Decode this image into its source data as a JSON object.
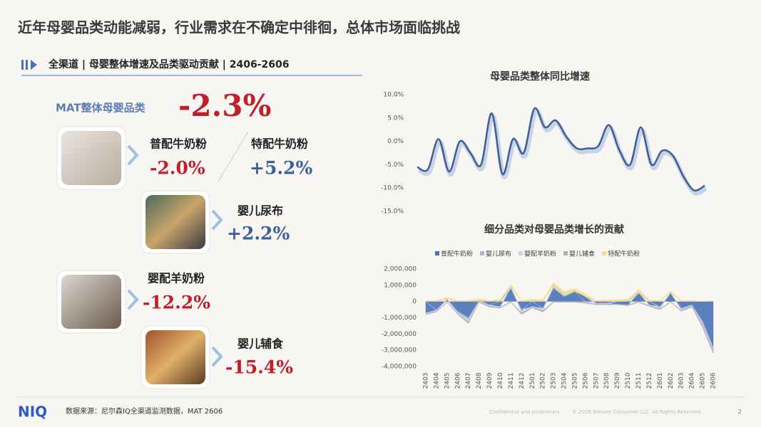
{
  "title": "近年母婴品类动能减弱，行业需求在不确定中徘徊，总体市场面临挑战",
  "section": "全渠道 | 母婴整体增速及品类驱动贡献 | 2406-2606",
  "mat": {
    "label": "MAT整体母婴品类",
    "value": "-2.3%"
  },
  "items": [
    {
      "name": "普配牛奶粉",
      "value": "-2.0%"
    },
    {
      "name": "特配牛奶粉",
      "value": "+5.2%"
    },
    {
      "name": "婴儿尿布",
      "value": "+2.2%"
    },
    {
      "name": "婴配羊奶粉",
      "value": "-12.2%"
    },
    {
      "name": "婴儿辅食",
      "value": "-15.4%"
    }
  ],
  "chart_data": [
    {
      "type": "line",
      "title": "母婴品类整体同比增速",
      "color": "#3d5f99",
      "values": [
        -5.5,
        -6,
        0.5,
        -6.5,
        0,
        -2.5,
        -5,
        6,
        -7,
        0.5,
        -2.5,
        7,
        3,
        4.5,
        1,
        -1.5,
        -1.5,
        -1,
        3.5,
        -2,
        -5,
        3,
        -5,
        -2,
        -3,
        -7.5,
        -10.5,
        -9.5
      ],
      "ylim": [
        -15,
        10
      ],
      "yticks": [
        {
          "value": 10,
          "label": "10.0%"
        },
        {
          "value": 5,
          "label": "5.0%"
        },
        {
          "value": 0,
          "label": "0.0%"
        },
        {
          "value": -5,
          "label": "-5.0%"
        },
        {
          "value": -10,
          "label": "-10.0%"
        },
        {
          "value": -15,
          "label": "-15.0%"
        }
      ]
    },
    {
      "type": "area",
      "stacked": true,
      "title": "细分品类对母婴品类增长的贡献",
      "legend": "top",
      "categories": [
        "2403",
        "2404",
        "2405",
        "2406",
        "2407",
        "2408",
        "2409",
        "2410",
        "2411",
        "2412",
        "2501",
        "2502",
        "2503",
        "2504",
        "2505",
        "2506",
        "2507",
        "2508",
        "2509",
        "2510",
        "2511",
        "2512",
        "2601",
        "2602",
        "2603",
        "2604",
        "2605",
        "2606"
      ],
      "series": [
        {
          "name": "普配牛奶粉",
          "color": "#4a72b8",
          "values": [
            -700000,
            -500000,
            100000,
            -600000,
            -1000000,
            50000,
            -200000,
            -300000,
            800000,
            -500000,
            -300000,
            -400000,
            800000,
            300000,
            600000,
            300000,
            -100000,
            -100000,
            -150000,
            -200000,
            500000,
            -200000,
            -300000,
            500000,
            -400000,
            -200000,
            -1200000,
            -2800000
          ]
        },
        {
          "name": "婴儿尿布",
          "color": "#a9b4d6",
          "values": [
            0,
            -50000,
            50000,
            -100000,
            -100000,
            0,
            -50000,
            50000,
            50000,
            -100000,
            50000,
            -50000,
            100000,
            50000,
            50000,
            -50000,
            0,
            0,
            0,
            50000,
            50000,
            0,
            -100000,
            50000,
            -100000,
            -50000,
            -200000,
            -150000
          ]
        },
        {
          "name": "婴配羊奶粉",
          "color": "#c8d4ea",
          "values": [
            -50000,
            -50000,
            0,
            -50000,
            -150000,
            0,
            -50000,
            -50000,
            50000,
            -100000,
            -50000,
            -100000,
            50000,
            50000,
            0,
            0,
            -50000,
            -50000,
            0,
            0,
            0,
            -50000,
            -50000,
            0,
            -50000,
            -50000,
            -100000,
            -100000
          ]
        },
        {
          "name": "婴儿辅食",
          "color": "#b0b0b0",
          "values": [
            -50000,
            -50000,
            -50000,
            -50000,
            -100000,
            -50000,
            -50000,
            -50000,
            -50000,
            -100000,
            -50000,
            -100000,
            -50000,
            -50000,
            -50000,
            -50000,
            -50000,
            -50000,
            -50000,
            -50000,
            -50000,
            -50000,
            -50000,
            -50000,
            -50000,
            -50000,
            -100000,
            -150000
          ]
        },
        {
          "name": "特配牛奶粉",
          "color": "#f3dc8c",
          "values": [
            50000,
            50000,
            100000,
            50000,
            50000,
            100000,
            50000,
            100000,
            150000,
            50000,
            100000,
            100000,
            200000,
            200000,
            150000,
            150000,
            50000,
            100000,
            100000,
            100000,
            200000,
            100000,
            50000,
            100000,
            50000,
            50000,
            0,
            50000
          ]
        }
      ],
      "ylim": [
        -4000000,
        2000000
      ],
      "yticks": [
        {
          "value": 2000000,
          "label": "2,000,000"
        },
        {
          "value": 1000000,
          "label": "1,000,000"
        },
        0,
        {
          "value": -1000000,
          "label": "-1,000,000"
        },
        {
          "value": -2000000,
          "label": "-2,000,000"
        },
        {
          "value": -3000000,
          "label": "-3,000,000"
        },
        {
          "value": -4000000,
          "label": "-4,000,000"
        }
      ]
    }
  ],
  "footer": {
    "logo": "NIQ",
    "source": "数据来源：尼尔森IQ全渠道监测数据，MAT 2606",
    "confidential": "Confidential and proprietary",
    "copyright": "© 2026 Nielsen Consumer LLC. All Rights Reserved.",
    "page": "2"
  }
}
